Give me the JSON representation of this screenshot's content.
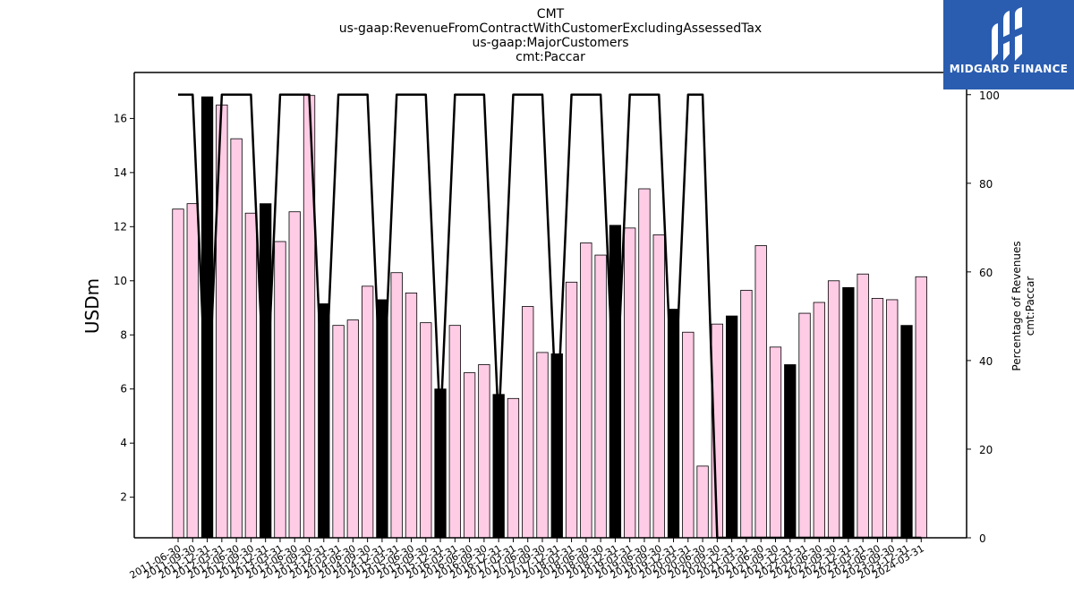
{
  "titles": {
    "line1": "CMT",
    "line2": "us-gaap:RevenueFromContractWithCustomerExcludingAssessedTax",
    "line3": "us-gaap:MajorCustomers",
    "line4": "cmt:Paccar"
  },
  "logo": {
    "text": "MIDGARD FINANCE",
    "bg": "#2a5db0"
  },
  "chart_data": {
    "type": "bar",
    "ylabel": "USDm",
    "y2label_line1": "Percentage of Revenues",
    "y2label_line2": "cmt:Paccar",
    "ylim": [
      0.5,
      17.7
    ],
    "y2lim": [
      0,
      105
    ],
    "yticks": [
      2,
      4,
      6,
      8,
      10,
      12,
      14,
      16
    ],
    "y2ticks": [
      0,
      20,
      40,
      60,
      80,
      100
    ],
    "colors": {
      "annual": "#000000",
      "quarter": "#ffcce6",
      "line": "#000000"
    },
    "categories": [
      "2011-06-30",
      "2011-09-30",
      "2011-12-31",
      "2012-03-31",
      "2012-06-30",
      "2012-09-30",
      "2012-12-31",
      "2013-03-31",
      "2013-06-30",
      "2013-09-30",
      "2013-12-31",
      "2014-03-31",
      "2014-06-30",
      "2014-09-30",
      "2014-12-31",
      "2015-03-31",
      "2015-06-30",
      "2015-09-30",
      "2015-12-31",
      "2016-03-31",
      "2016-06-30",
      "2016-09-30",
      "2016-12-31",
      "2017-03-31",
      "2017-06-30",
      "2017-09-30",
      "2017-12-31",
      "2018-03-31",
      "2018-06-30",
      "2018-09-30",
      "2018-12-31",
      "2019-03-31",
      "2019-06-30",
      "2019-09-30",
      "2019-12-31",
      "2020-03-31",
      "2020-06-30",
      "2020-09-30",
      "2020-12-31",
      "2021-03-31",
      "2021-06-30",
      "2021-09-30",
      "2021-12-31",
      "2022-03-31",
      "2022-06-30",
      "2022-09-30",
      "2022-12-31",
      "2023-03-31",
      "2023-06-30",
      "2023-09-30",
      "2023-12-31",
      "2024-03-31"
    ],
    "values": [
      12.65,
      12.85,
      16.8,
      16.5,
      15.25,
      12.5,
      12.85,
      11.45,
      12.55,
      16.85,
      9.15,
      8.35,
      8.55,
      9.8,
      9.3,
      10.3,
      9.55,
      8.45,
      6.0,
      8.35,
      6.6,
      6.9,
      5.8,
      5.65,
      9.05,
      7.35,
      7.3,
      9.95,
      11.4,
      10.95,
      12.05,
      11.95,
      13.4,
      11.7,
      8.95,
      8.1,
      3.15,
      8.4,
      8.7,
      9.65,
      11.3,
      7.55,
      6.9,
      8.8,
      9.2,
      10.0,
      9.75,
      10.25,
      9.35,
      9.3,
      8.35,
      10.15
    ],
    "annual_flags": [
      false,
      false,
      true,
      false,
      false,
      false,
      true,
      false,
      false,
      false,
      true,
      false,
      false,
      false,
      true,
      false,
      false,
      false,
      true,
      false,
      false,
      false,
      true,
      false,
      false,
      false,
      true,
      false,
      false,
      false,
      true,
      false,
      false,
      false,
      true,
      false,
      false,
      false,
      true,
      false,
      false,
      false,
      true,
      false,
      false,
      false,
      true,
      false,
      false,
      false,
      true,
      false
    ],
    "percent_series": {
      "name": "",
      "values": [
        100,
        100,
        25,
        100,
        100,
        100,
        25,
        100,
        100,
        100,
        25,
        100,
        100,
        100,
        25,
        100,
        100,
        100,
        25,
        100,
        100,
        100,
        25,
        100,
        100,
        100,
        25,
        100,
        100,
        100,
        25,
        100,
        100,
        100,
        25,
        100,
        100,
        0,
        0,
        0,
        0,
        0,
        0,
        0,
        0,
        0,
        0,
        0,
        0,
        0,
        0,
        0
      ]
    }
  }
}
